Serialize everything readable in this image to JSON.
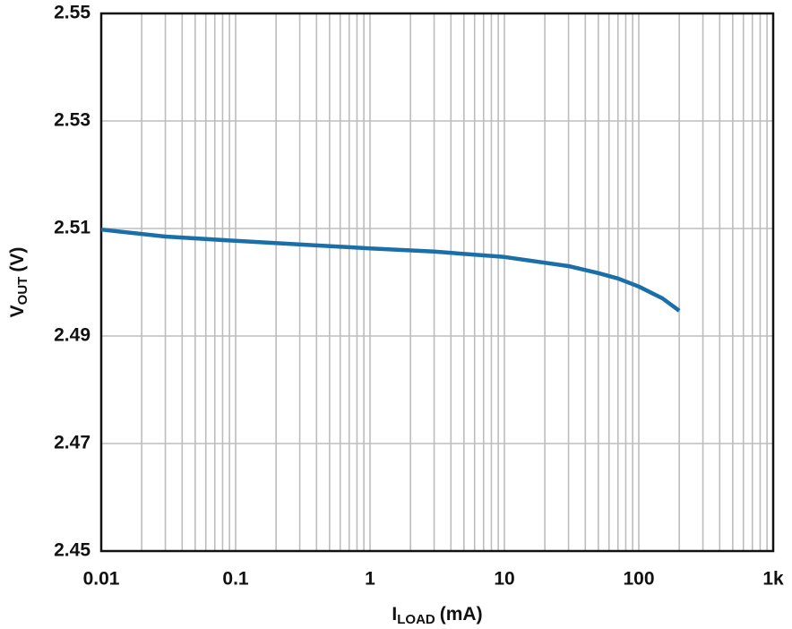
{
  "chart_data": {
    "type": "line",
    "xlabel": [
      "I",
      "LOAD",
      "(mA)"
    ],
    "ylabel": [
      "V",
      "OUT",
      "(V)"
    ],
    "x": [
      0.01,
      0.03,
      0.1,
      1,
      3,
      10,
      30,
      50,
      70,
      100,
      150,
      200
    ],
    "series": [
      {
        "color": "#1b6fa8",
        "values": [
          2.5098,
          2.5085,
          2.5077,
          2.5063,
          2.5057,
          2.5047,
          2.503,
          2.5017,
          2.5007,
          2.4992,
          2.497,
          2.4947
        ]
      }
    ],
    "xscale": "log",
    "xlim": [
      0.01,
      1000
    ],
    "xticks": [
      0.01,
      0.1,
      1,
      10,
      100,
      {
        "value": 1000,
        "label": "1k"
      }
    ],
    "ylim": [
      2.45,
      2.55
    ],
    "yticks": [
      2.45,
      2.47,
      2.49,
      2.51,
      2.53,
      2.55
    ],
    "grid": true
  }
}
